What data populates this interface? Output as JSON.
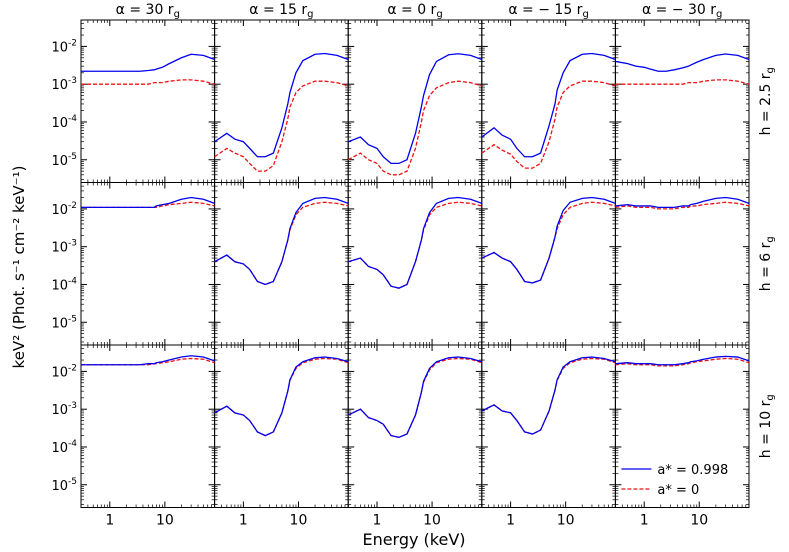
{
  "figure": {
    "xlabel": "Energy (keV)",
    "ylabel": "keV² (Phot. s⁻¹ cm⁻² keV⁻¹)",
    "column_titles": [
      "α = 30 r",
      "α = 15 r",
      "α = 0 r",
      "α = − 15 r",
      "α = − 30 r"
    ],
    "title_subscript": "g",
    "row_titles": [
      "h = 2.5 r",
      "h = 6 r",
      "h = 10 r"
    ],
    "x_ticks": [
      "1",
      "10"
    ],
    "y_tick_base": "10",
    "y_tick_exponents": [
      "-2",
      "-3",
      "-4",
      "-5"
    ],
    "legend": [
      {
        "label": "a* = 0.998",
        "color": "#0000ee",
        "style": "solid"
      },
      {
        "label": "a* = 0",
        "color": "#ee1111",
        "style": "dashed"
      }
    ]
  },
  "chart_data": {
    "type": "line",
    "x_scale": "log",
    "y_scale": "log",
    "xlim": [
      0.3,
      80
    ],
    "ylim": [
      2.5e-06,
      0.05
    ],
    "grid": false,
    "legend_position": "lower-right of bottom-right panel",
    "x_energy_kev": [
      0.3,
      0.5,
      0.7,
      1.0,
      1.3,
      1.8,
      2.5,
      3.5,
      5.0,
      6.4,
      7.0,
      9.0,
      12.0,
      20.0,
      30.0,
      50.0,
      80.0
    ],
    "panels": [
      {
        "row": 0,
        "col": 0,
        "a0998": [
          0.0022,
          0.0022,
          0.0022,
          0.0022,
          0.0022,
          0.0022,
          0.0022,
          0.0022,
          0.0023,
          0.0024,
          0.0025,
          0.0028,
          0.0035,
          0.005,
          0.0062,
          0.0058,
          0.0045
        ],
        "a0": [
          0.001,
          0.001,
          0.001,
          0.001,
          0.001,
          0.001,
          0.001,
          0.001,
          0.001,
          0.0011,
          0.0011,
          0.0011,
          0.0012,
          0.0013,
          0.0013,
          0.0012,
          0.001
        ]
      },
      {
        "row": 0,
        "col": 1,
        "a0998": [
          3e-05,
          5e-05,
          3.5e-05,
          3e-05,
          2e-05,
          1.2e-05,
          1.2e-05,
          1.5e-05,
          7e-05,
          0.0003,
          0.0006,
          0.002,
          0.0042,
          0.0062,
          0.0065,
          0.0058,
          0.0045
        ],
        "a0": [
          1.2e-05,
          2e-05,
          1.5e-05,
          1.2e-05,
          8e-06,
          5e-06,
          5e-06,
          7e-06,
          3e-05,
          0.00012,
          0.00025,
          0.0006,
          0.0009,
          0.0012,
          0.0012,
          0.0011,
          0.0009
        ]
      },
      {
        "row": 0,
        "col": 2,
        "a0998": [
          3e-05,
          4e-05,
          2.5e-05,
          2e-05,
          1.2e-05,
          8e-06,
          8e-06,
          1e-05,
          5e-05,
          0.00025,
          0.0005,
          0.0018,
          0.004,
          0.006,
          0.0064,
          0.0058,
          0.0045
        ],
        "a0": [
          1e-05,
          1.5e-05,
          1e-05,
          8e-06,
          5e-06,
          4e-06,
          4e-06,
          5e-06,
          2e-05,
          0.0001,
          0.0002,
          0.0005,
          0.0008,
          0.0011,
          0.0012,
          0.0011,
          0.0009
        ]
      },
      {
        "row": 0,
        "col": 3,
        "a0998": [
          4e-05,
          7e-05,
          4.5e-05,
          3.5e-05,
          2e-05,
          1.2e-05,
          1.2e-05,
          1.5e-05,
          8e-05,
          0.0003,
          0.0007,
          0.002,
          0.0042,
          0.0062,
          0.0065,
          0.0058,
          0.0045
        ],
        "a0": [
          1.5e-05,
          2.5e-05,
          1.8e-05,
          1.4e-05,
          9e-06,
          6e-06,
          6e-06,
          8e-06,
          3e-05,
          0.00012,
          0.00025,
          0.0006,
          0.0009,
          0.0012,
          0.0012,
          0.0011,
          0.0009
        ]
      },
      {
        "row": 0,
        "col": 4,
        "a0998": [
          0.004,
          0.0035,
          0.003,
          0.0028,
          0.0025,
          0.0022,
          0.0022,
          0.0024,
          0.0027,
          0.003,
          0.0032,
          0.0038,
          0.0045,
          0.0058,
          0.0063,
          0.0058,
          0.0045
        ],
        "a0": [
          0.001,
          0.001,
          0.001,
          0.001,
          0.001,
          0.001,
          0.001,
          0.001,
          0.001,
          0.0011,
          0.0011,
          0.0011,
          0.0012,
          0.0013,
          0.0013,
          0.0012,
          0.001
        ]
      },
      {
        "row": 1,
        "col": 0,
        "a0998": [
          0.011,
          0.011,
          0.011,
          0.011,
          0.011,
          0.011,
          0.011,
          0.011,
          0.011,
          0.011,
          0.012,
          0.013,
          0.014,
          0.018,
          0.02,
          0.018,
          0.014
        ],
        "a0": [
          0.011,
          0.011,
          0.011,
          0.011,
          0.011,
          0.011,
          0.011,
          0.011,
          0.011,
          0.011,
          0.011,
          0.012,
          0.013,
          0.014,
          0.015,
          0.014,
          0.012
        ]
      },
      {
        "row": 1,
        "col": 1,
        "a0998": [
          0.0004,
          0.0006,
          0.0004,
          0.00035,
          0.00025,
          0.00012,
          0.0001,
          0.00012,
          0.0004,
          0.0015,
          0.003,
          0.008,
          0.014,
          0.019,
          0.02,
          0.018,
          0.014
        ],
        "a0": [
          0.0004,
          0.0006,
          0.0004,
          0.00035,
          0.00025,
          0.00012,
          0.0001,
          0.00012,
          0.0004,
          0.0015,
          0.0028,
          0.007,
          0.011,
          0.014,
          0.015,
          0.014,
          0.012
        ]
      },
      {
        "row": 1,
        "col": 2,
        "a0998": [
          0.0004,
          0.0005,
          0.0003,
          0.00025,
          0.00018,
          9e-05,
          8e-05,
          0.0001,
          0.0004,
          0.0015,
          0.003,
          0.008,
          0.014,
          0.019,
          0.02,
          0.018,
          0.014
        ],
        "a0": [
          0.0004,
          0.0005,
          0.0003,
          0.00025,
          0.00018,
          9e-05,
          8e-05,
          0.0001,
          0.0004,
          0.0015,
          0.0028,
          0.007,
          0.011,
          0.014,
          0.015,
          0.014,
          0.012
        ]
      },
      {
        "row": 1,
        "col": 3,
        "a0998": [
          0.0005,
          0.0007,
          0.0005,
          0.0004,
          0.00025,
          0.00012,
          0.00011,
          0.00013,
          0.0005,
          0.0018,
          0.0035,
          0.009,
          0.015,
          0.019,
          0.02,
          0.018,
          0.014
        ],
        "a0": [
          0.0005,
          0.0007,
          0.0005,
          0.0004,
          0.00025,
          0.00012,
          0.00011,
          0.00013,
          0.0005,
          0.0018,
          0.003,
          0.007,
          0.011,
          0.014,
          0.015,
          0.014,
          0.012
        ]
      },
      {
        "row": 1,
        "col": 4,
        "a0998": [
          0.012,
          0.013,
          0.012,
          0.012,
          0.012,
          0.011,
          0.011,
          0.011,
          0.012,
          0.012,
          0.013,
          0.014,
          0.016,
          0.019,
          0.02,
          0.018,
          0.014
        ],
        "a0": [
          0.011,
          0.012,
          0.011,
          0.011,
          0.011,
          0.01,
          0.01,
          0.01,
          0.011,
          0.011,
          0.012,
          0.012,
          0.013,
          0.014,
          0.015,
          0.014,
          0.012
        ]
      },
      {
        "row": 2,
        "col": 0,
        "a0998": [
          0.015,
          0.015,
          0.015,
          0.015,
          0.015,
          0.015,
          0.015,
          0.015,
          0.016,
          0.016,
          0.017,
          0.018,
          0.02,
          0.024,
          0.026,
          0.024,
          0.019
        ],
        "a0": [
          0.015,
          0.015,
          0.015,
          0.015,
          0.015,
          0.015,
          0.015,
          0.015,
          0.015,
          0.016,
          0.016,
          0.017,
          0.018,
          0.021,
          0.022,
          0.021,
          0.017
        ]
      },
      {
        "row": 2,
        "col": 1,
        "a0998": [
          0.0008,
          0.0012,
          0.0008,
          0.0007,
          0.0005,
          0.00025,
          0.0002,
          0.00025,
          0.0008,
          0.003,
          0.006,
          0.013,
          0.018,
          0.023,
          0.024,
          0.022,
          0.018
        ],
        "a0": [
          0.0008,
          0.0012,
          0.0008,
          0.0007,
          0.0005,
          0.00025,
          0.0002,
          0.00025,
          0.0008,
          0.003,
          0.0058,
          0.012,
          0.017,
          0.021,
          0.022,
          0.021,
          0.017
        ]
      },
      {
        "row": 2,
        "col": 2,
        "a0998": [
          0.0007,
          0.001,
          0.0006,
          0.0005,
          0.0004,
          0.0002,
          0.00018,
          0.00022,
          0.0007,
          0.0028,
          0.0055,
          0.012,
          0.018,
          0.023,
          0.024,
          0.022,
          0.018
        ],
        "a0": [
          0.0007,
          0.001,
          0.0006,
          0.0005,
          0.0004,
          0.0002,
          0.00018,
          0.00022,
          0.0007,
          0.0028,
          0.0052,
          0.011,
          0.017,
          0.021,
          0.022,
          0.021,
          0.017
        ]
      },
      {
        "row": 2,
        "col": 3,
        "a0998": [
          0.0009,
          0.0013,
          0.0009,
          0.0008,
          0.0005,
          0.00025,
          0.00022,
          0.00028,
          0.0009,
          0.0032,
          0.006,
          0.013,
          0.018,
          0.023,
          0.024,
          0.022,
          0.018
        ],
        "a0": [
          0.0009,
          0.0013,
          0.0009,
          0.0008,
          0.0005,
          0.00025,
          0.00022,
          0.00028,
          0.0009,
          0.0032,
          0.0058,
          0.012,
          0.017,
          0.021,
          0.022,
          0.021,
          0.017
        ]
      },
      {
        "row": 2,
        "col": 4,
        "a0998": [
          0.016,
          0.017,
          0.016,
          0.016,
          0.016,
          0.015,
          0.015,
          0.015,
          0.016,
          0.017,
          0.018,
          0.019,
          0.021,
          0.024,
          0.025,
          0.024,
          0.019
        ],
        "a0": [
          0.015,
          0.016,
          0.015,
          0.015,
          0.015,
          0.014,
          0.014,
          0.014,
          0.015,
          0.016,
          0.017,
          0.018,
          0.019,
          0.021,
          0.022,
          0.021,
          0.017
        ]
      }
    ]
  }
}
